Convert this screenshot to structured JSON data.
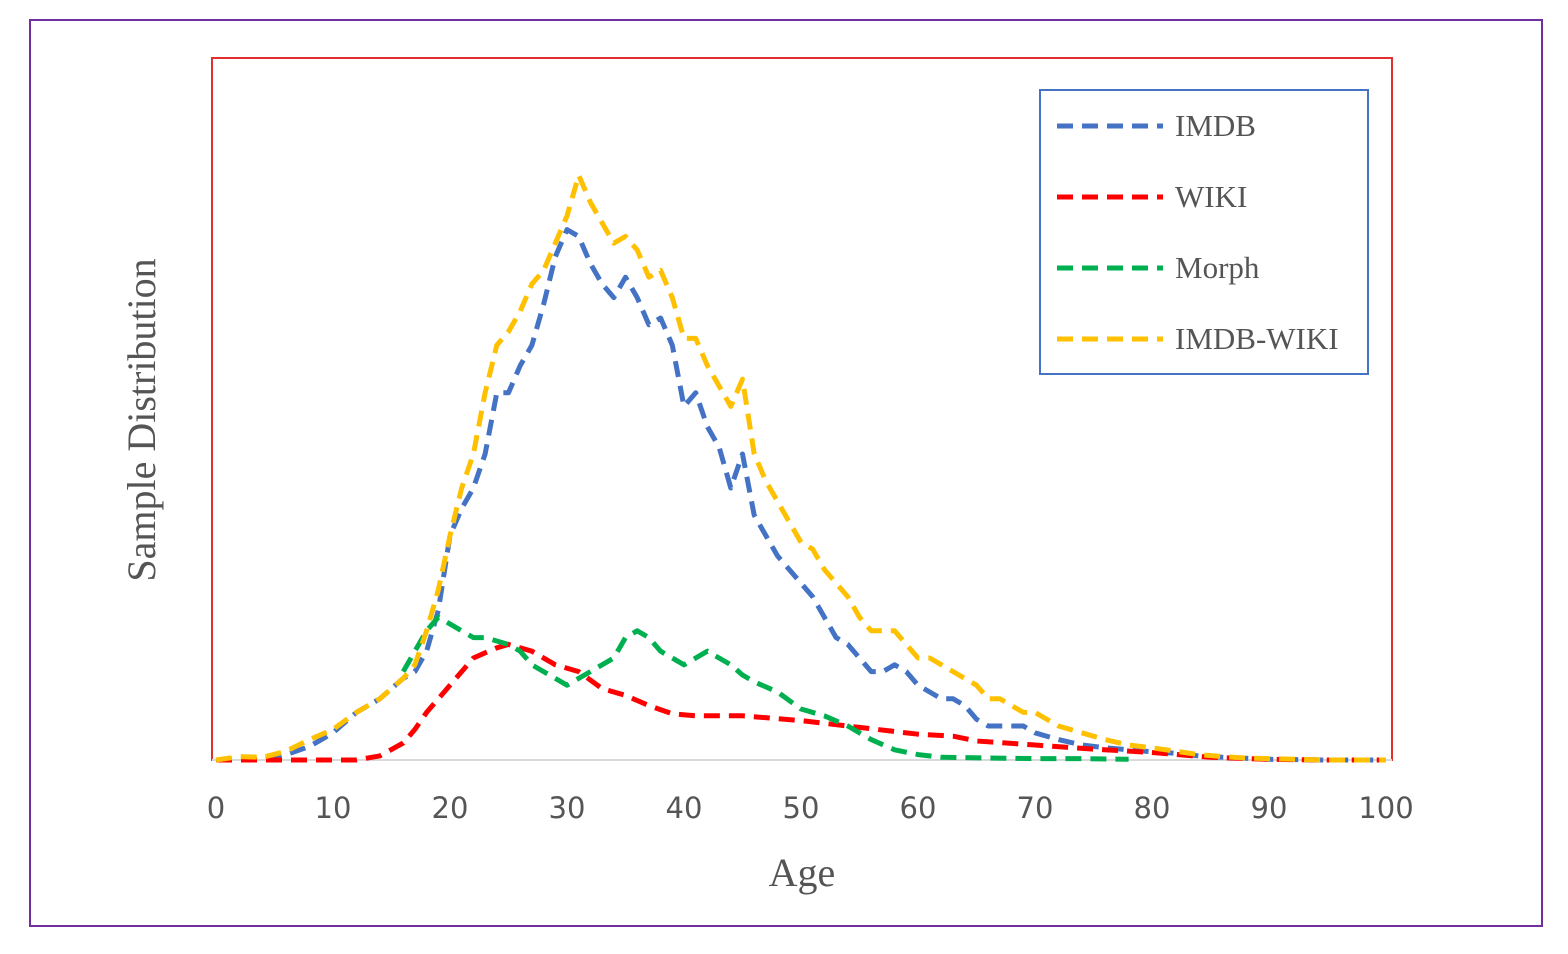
{
  "chart_data": {
    "type": "line",
    "title": "",
    "xlabel": "Age",
    "ylabel": "Sample Distribution",
    "xlim": [
      0,
      100
    ],
    "ylim": [
      0,
      100
    ],
    "x_ticks": [
      "0",
      "10",
      "20",
      "30",
      "40",
      "50",
      "60",
      "70",
      "80",
      "90",
      "100"
    ],
    "y_ticks_visible": false,
    "grid": false,
    "line_style": "dashed",
    "legend_position": "top-right",
    "series": [
      {
        "name": "IMDB",
        "color": "#4472C4",
        "points": [
          [
            0,
            0
          ],
          [
            4,
            0
          ],
          [
            6,
            0.8
          ],
          [
            8,
            2
          ],
          [
            10,
            4
          ],
          [
            12,
            7
          ],
          [
            14,
            9
          ],
          [
            16,
            12
          ],
          [
            17,
            13
          ],
          [
            18,
            16
          ],
          [
            19,
            22
          ],
          [
            20,
            33
          ],
          [
            21,
            37
          ],
          [
            22,
            40
          ],
          [
            23,
            45
          ],
          [
            24,
            54
          ],
          [
            25,
            54
          ],
          [
            26,
            58
          ],
          [
            27,
            61
          ],
          [
            28,
            67
          ],
          [
            29,
            74
          ],
          [
            30,
            78
          ],
          [
            31,
            77
          ],
          [
            32,
            73
          ],
          [
            33,
            70
          ],
          [
            34,
            68
          ],
          [
            35,
            71
          ],
          [
            36,
            68
          ],
          [
            37,
            64
          ],
          [
            38,
            65
          ],
          [
            39,
            61
          ],
          [
            40,
            52
          ],
          [
            41,
            54
          ],
          [
            42,
            49
          ],
          [
            43,
            46
          ],
          [
            44,
            40
          ],
          [
            45,
            45
          ],
          [
            46,
            36
          ],
          [
            47,
            33
          ],
          [
            48,
            30
          ],
          [
            49,
            28
          ],
          [
            50,
            26
          ],
          [
            51,
            24
          ],
          [
            52,
            21
          ],
          [
            53,
            18
          ],
          [
            54,
            17
          ],
          [
            55,
            15
          ],
          [
            56,
            13
          ],
          [
            57,
            13
          ],
          [
            58,
            14
          ],
          [
            59,
            13
          ],
          [
            60,
            11
          ],
          [
            61,
            10
          ],
          [
            62,
            9
          ],
          [
            63,
            9
          ],
          [
            64,
            8
          ],
          [
            65,
            6
          ],
          [
            66,
            5
          ],
          [
            67,
            5
          ],
          [
            68,
            5
          ],
          [
            69,
            5
          ],
          [
            70,
            4
          ],
          [
            72,
            3
          ],
          [
            74,
            2.2
          ],
          [
            76,
            1.8
          ],
          [
            78,
            1.5
          ],
          [
            80,
            1.2
          ],
          [
            82,
            1
          ],
          [
            84,
            0.6
          ],
          [
            86,
            0.4
          ],
          [
            90,
            0.1
          ],
          [
            95,
            0
          ],
          [
            100,
            0
          ]
        ]
      },
      {
        "name": "WIKI",
        "color": "#FF0000",
        "points": [
          [
            0,
            0
          ],
          [
            5,
            0
          ],
          [
            8,
            0
          ],
          [
            10,
            0
          ],
          [
            12,
            0
          ],
          [
            14,
            0.6
          ],
          [
            16,
            2.5
          ],
          [
            17,
            4.5
          ],
          [
            18,
            7
          ],
          [
            20,
            11
          ],
          [
            22,
            15
          ],
          [
            24,
            16.5
          ],
          [
            25,
            17
          ],
          [
            27,
            16
          ],
          [
            29,
            14
          ],
          [
            31,
            13
          ],
          [
            33,
            10.5
          ],
          [
            35,
            9.5
          ],
          [
            37,
            8
          ],
          [
            39,
            6.8
          ],
          [
            41,
            6.5
          ],
          [
            45,
            6.5
          ],
          [
            50,
            5.8
          ],
          [
            55,
            4.8
          ],
          [
            60,
            3.8
          ],
          [
            63,
            3.5
          ],
          [
            65,
            2.8
          ],
          [
            70,
            2.2
          ],
          [
            75,
            1.6
          ],
          [
            80,
            1.1
          ],
          [
            85,
            0.4
          ],
          [
            90,
            0.1
          ],
          [
            95,
            0
          ],
          [
            100,
            0
          ]
        ]
      },
      {
        "name": "Morph",
        "color": "#00B050",
        "points": [
          [
            16,
            13
          ],
          [
            17,
            16
          ],
          [
            18,
            19
          ],
          [
            19,
            21
          ],
          [
            20,
            20
          ],
          [
            21,
            19
          ],
          [
            22,
            18
          ],
          [
            23,
            18
          ],
          [
            24,
            17.5
          ],
          [
            25,
            17
          ],
          [
            26,
            16
          ],
          [
            27,
            14
          ],
          [
            28,
            13
          ],
          [
            29,
            12
          ],
          [
            30,
            11
          ],
          [
            31,
            12
          ],
          [
            32,
            13
          ],
          [
            33,
            14
          ],
          [
            34,
            15
          ],
          [
            35,
            18
          ],
          [
            36,
            19
          ],
          [
            37,
            18
          ],
          [
            38,
            16
          ],
          [
            39,
            15
          ],
          [
            40,
            14
          ],
          [
            41,
            15
          ],
          [
            42,
            16
          ],
          [
            43,
            15
          ],
          [
            44,
            14
          ],
          [
            45,
            12.5
          ],
          [
            46,
            11.5
          ],
          [
            48,
            10
          ],
          [
            50,
            7.5
          ],
          [
            52,
            6.5
          ],
          [
            54,
            5
          ],
          [
            56,
            3
          ],
          [
            58,
            1.5
          ],
          [
            60,
            0.8
          ],
          [
            62,
            0.4
          ],
          [
            66,
            0.3
          ],
          [
            70,
            0.2
          ],
          [
            74,
            0.2
          ],
          [
            78,
            0.1
          ]
        ]
      },
      {
        "name": "IMDB-WIKI",
        "color": "#FFC000",
        "points": [
          [
            0,
            0
          ],
          [
            2,
            0.5
          ],
          [
            4,
            0.4
          ],
          [
            6,
            1.3
          ],
          [
            8,
            3
          ],
          [
            10,
            4.5
          ],
          [
            12,
            7
          ],
          [
            14,
            9
          ],
          [
            16,
            12
          ],
          [
            17,
            14
          ],
          [
            18,
            19
          ],
          [
            19,
            25
          ],
          [
            20,
            33
          ],
          [
            21,
            40
          ],
          [
            22,
            45
          ],
          [
            23,
            54
          ],
          [
            24,
            61
          ],
          [
            25,
            63
          ],
          [
            26,
            66
          ],
          [
            27,
            70
          ],
          [
            28,
            72
          ],
          [
            29,
            76
          ],
          [
            30,
            80
          ],
          [
            31,
            86
          ],
          [
            32,
            82
          ],
          [
            33,
            79
          ],
          [
            34,
            76
          ],
          [
            35,
            77
          ],
          [
            36,
            75
          ],
          [
            37,
            71
          ],
          [
            38,
            72
          ],
          [
            39,
            68
          ],
          [
            40,
            62
          ],
          [
            41,
            62
          ],
          [
            42,
            58
          ],
          [
            43,
            55
          ],
          [
            44,
            52
          ],
          [
            45,
            56
          ],
          [
            46,
            45
          ],
          [
            47,
            41
          ],
          [
            48,
            38
          ],
          [
            49,
            35
          ],
          [
            50,
            32
          ],
          [
            51,
            31
          ],
          [
            52,
            28
          ],
          [
            53,
            26
          ],
          [
            54,
            24
          ],
          [
            55,
            21
          ],
          [
            56,
            19
          ],
          [
            57,
            19
          ],
          [
            58,
            19
          ],
          [
            59,
            17
          ],
          [
            60,
            15
          ],
          [
            61,
            15
          ],
          [
            62,
            14
          ],
          [
            63,
            13
          ],
          [
            64,
            12
          ],
          [
            65,
            11
          ],
          [
            66,
            9
          ],
          [
            67,
            9
          ],
          [
            68,
            8
          ],
          [
            69,
            7
          ],
          [
            70,
            7
          ],
          [
            72,
            5
          ],
          [
            74,
            4
          ],
          [
            76,
            3
          ],
          [
            78,
            2.2
          ],
          [
            80,
            1.8
          ],
          [
            82,
            1.3
          ],
          [
            84,
            0.8
          ],
          [
            86,
            0.5
          ],
          [
            88,
            0.3
          ],
          [
            90,
            0.2
          ],
          [
            95,
            0
          ],
          [
            100,
            0
          ]
        ]
      }
    ]
  }
}
